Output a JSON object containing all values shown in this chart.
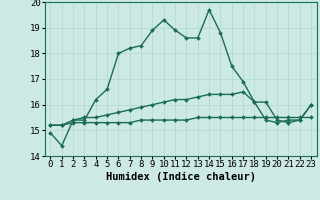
{
  "title": "",
  "xlabel": "Humidex (Indice chaleur)",
  "xlim": [
    -0.5,
    23.5
  ],
  "ylim": [
    14,
    20
  ],
  "yticks": [
    14,
    15,
    16,
    17,
    18,
    19,
    20
  ],
  "xticks": [
    0,
    1,
    2,
    3,
    4,
    5,
    6,
    7,
    8,
    9,
    10,
    11,
    12,
    13,
    14,
    15,
    16,
    17,
    18,
    19,
    20,
    21,
    22,
    23
  ],
  "background_color": "#cce9e4",
  "grid_color": "#afd8d1",
  "line_color": "#1a6b5a",
  "line1_y": [
    14.9,
    14.4,
    15.4,
    15.4,
    16.2,
    16.6,
    18.0,
    18.2,
    18.3,
    18.9,
    19.3,
    18.9,
    18.6,
    18.6,
    19.7,
    18.8,
    17.5,
    16.9,
    16.1,
    16.1,
    15.4,
    15.3,
    15.4,
    16.0
  ],
  "line2_y": [
    15.2,
    15.2,
    15.4,
    15.5,
    15.5,
    15.6,
    15.7,
    15.8,
    15.9,
    16.0,
    16.1,
    16.2,
    16.2,
    16.3,
    16.4,
    16.4,
    16.4,
    16.5,
    16.1,
    15.4,
    15.3,
    15.4,
    15.4,
    16.0
  ],
  "line3_y": [
    15.2,
    15.2,
    15.3,
    15.3,
    15.3,
    15.3,
    15.3,
    15.3,
    15.4,
    15.4,
    15.4,
    15.4,
    15.4,
    15.5,
    15.5,
    15.5,
    15.5,
    15.5,
    15.5,
    15.5,
    15.5,
    15.5,
    15.5,
    15.5
  ],
  "marker": "D",
  "marker_size": 2.0,
  "linewidth": 1.0,
  "tick_fontsize": 6.5,
  "xlabel_fontsize": 7.5
}
